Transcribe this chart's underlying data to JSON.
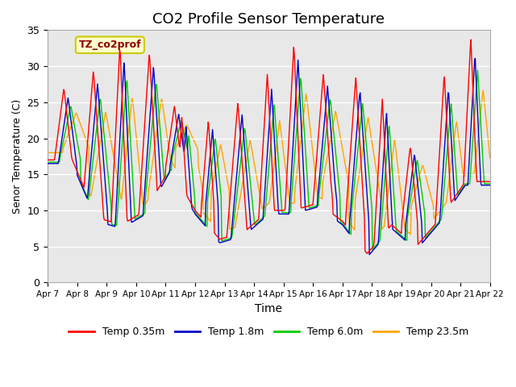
{
  "title": "CO2 Profile Sensor Temperature",
  "xlabel": "Time",
  "ylabel": "Senor Temperature (C)",
  "ylim": [
    0,
    35
  ],
  "annotation_text": "TZ_co2prof",
  "annotation_color": "#8B0000",
  "annotation_bg": "#FFFFCC",
  "annotation_border": "#CCCC00",
  "legend_labels": [
    "Temp 0.35m",
    "Temp 1.8m",
    "Temp 6.0m",
    "Temp 23.5m"
  ],
  "line_colors": [
    "#FF0000",
    "#0000CC",
    "#00CC00",
    "#FFA500"
  ],
  "line_width": 1.0,
  "bg_color": "#E8E8E8",
  "tick_dates": [
    "Apr 7",
    "Apr 8",
    "Apr 9",
    "Apr 10",
    "Apr 11",
    "Apr 12",
    "Apr 13",
    "Apr 14",
    "Apr 15",
    "Apr 16",
    "Apr 17",
    "Apr 18",
    "Apr 19",
    "Apr 20",
    "Apr 21",
    "Apr 22"
  ],
  "grid_color": "white",
  "title_fontsize": 13,
  "yticks": [
    0,
    5,
    10,
    15,
    20,
    25,
    30,
    35
  ]
}
